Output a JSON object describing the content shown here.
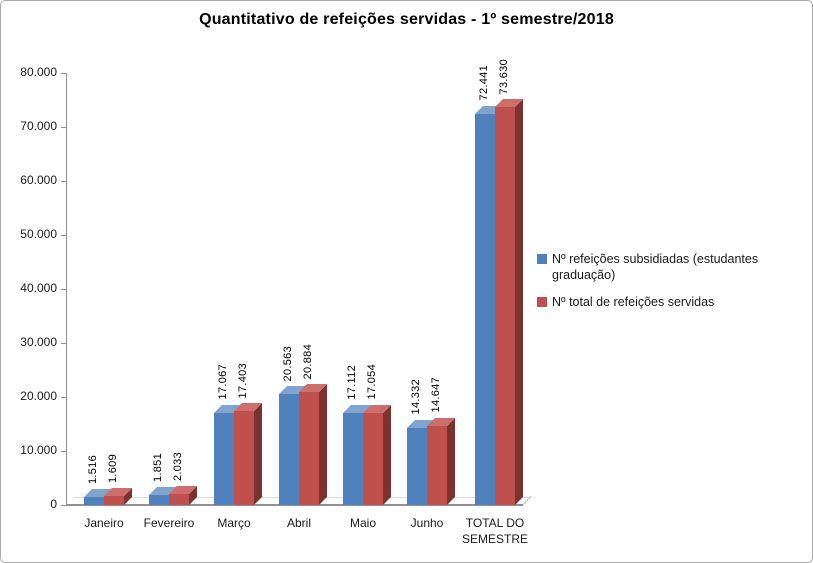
{
  "title": "Quantitativo de refeições servidas - 1º semestre/2018",
  "chart_data": {
    "type": "bar",
    "style": "3d-clustered",
    "title": "Quantitativo de refeições servidas - 1º semestre/2018",
    "categories": [
      "Janeiro",
      "Fevereiro",
      "Março",
      "Abril",
      "Maio",
      "Junho",
      "TOTAL DO SEMESTRE"
    ],
    "series": [
      {
        "name": "Nº refeições subsidiadas (estudantes graduação)",
        "color": "#4F81BD",
        "color_top": "#7FA5CE",
        "color_side": "#2F5680",
        "values": [
          1516,
          1851,
          17067,
          20563,
          17112,
          14332,
          72441
        ],
        "labels": [
          "1.516",
          "1.851",
          "17.067",
          "20.563",
          "17.112",
          "14.332",
          "72.441"
        ]
      },
      {
        "name": "Nº total de refeições servidas",
        "color": "#C0504D",
        "color_top": "#CC6F6C",
        "color_side": "#7C3230",
        "values": [
          1609,
          2033,
          17403,
          20884,
          17054,
          14647,
          73630
        ],
        "labels": [
          "1.609",
          "2.033",
          "17.403",
          "20.884",
          "17.054",
          "14.647",
          "73.630"
        ]
      }
    ],
    "xlabel": "",
    "ylabel": "",
    "ylim": [
      0,
      80000
    ],
    "ytick_interval": 10000,
    "ytick_labels": [
      "0",
      "10.000",
      "20.000",
      "30.000",
      "40.000",
      "50.000",
      "60.000",
      "70.000",
      "80.000"
    ],
    "grid": false,
    "legend_position": "right",
    "data_labels": "rotated-vertical-above-bars"
  },
  "colors": {
    "axis_line": "#909090",
    "floor_back": "#dcdcdc",
    "frame_border": "#ababab",
    "title_text": "#000000",
    "axis_text": "#1a1a1a"
  }
}
